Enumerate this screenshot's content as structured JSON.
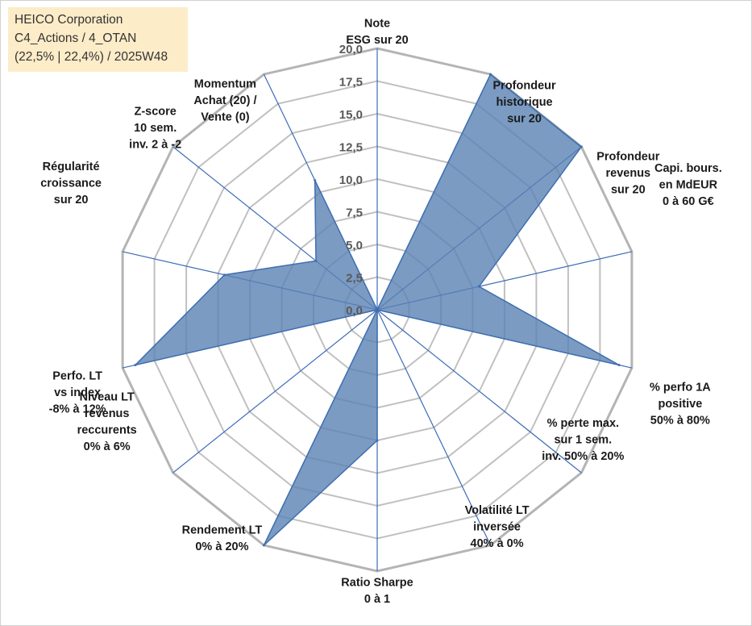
{
  "badge": {
    "line1": "HEICO Corporation",
    "line2": "C4_Actions / 4_OTAN",
    "line3": "(22,5% | 22,4%) / 2025W48"
  },
  "colors": {
    "fill": "#5a82b4",
    "stroke": "#3f6fb0",
    "spoke": "#3d6bb8",
    "grid": "#c0c0c0",
    "outer": "#b4b4b4"
  },
  "chart_data": {
    "type": "radar",
    "rmin": 0,
    "rmax": 20,
    "tick_labels": [
      "0,0",
      "2,5",
      "5,0",
      "7,5",
      "10,0",
      "12,5",
      "15,0",
      "17,5",
      "20,0"
    ],
    "axes": [
      {
        "label": [
          "Note",
          "ESG sur 20"
        ],
        "value": 0
      },
      {
        "label": [
          "Profondeur",
          "historique",
          "sur 20"
        ],
        "value": 20
      },
      {
        "label": [
          "Profondeur",
          "revenus",
          "sur 20"
        ],
        "value": 20
      },
      {
        "label": [
          "Capi. bours.",
          "en MdEUR",
          "0 à 60 G€"
        ],
        "value": 8
      },
      {
        "label": [
          "% perfo 1A",
          "positive",
          "50% à 80%"
        ],
        "value": 19
      },
      {
        "label": [
          "% perte max.",
          "sur 1 sem.",
          "inv. 50% à 20%"
        ],
        "value": 0
      },
      {
        "label": [
          "Volatilité LT",
          "inversée",
          "40% à 0%"
        ],
        "value": 0
      },
      {
        "label": [
          "Ratio Sharpe",
          "0 à 1"
        ],
        "value": 10
      },
      {
        "label": [
          "Rendement LT",
          "0% à 20%"
        ],
        "value": 20
      },
      {
        "label": [
          "Niveau LT",
          "revenus",
          "reccurents",
          "0% à 6%"
        ],
        "value": 0
      },
      {
        "label": [
          "Perfo. LT",
          "vs index",
          "-8% à 12%"
        ],
        "value": 19
      },
      {
        "label": [
          "Régularité",
          "croissance",
          "sur 20"
        ],
        "value": 12
      },
      {
        "label": [
          "Z-score",
          "10 sem.",
          "inv. 2 à -2"
        ],
        "value": 6
      },
      {
        "label": [
          "Momentum",
          "Achat (20) /",
          "Vente (0)"
        ],
        "value": 11
      }
    ],
    "grid": true,
    "legend": "none"
  }
}
